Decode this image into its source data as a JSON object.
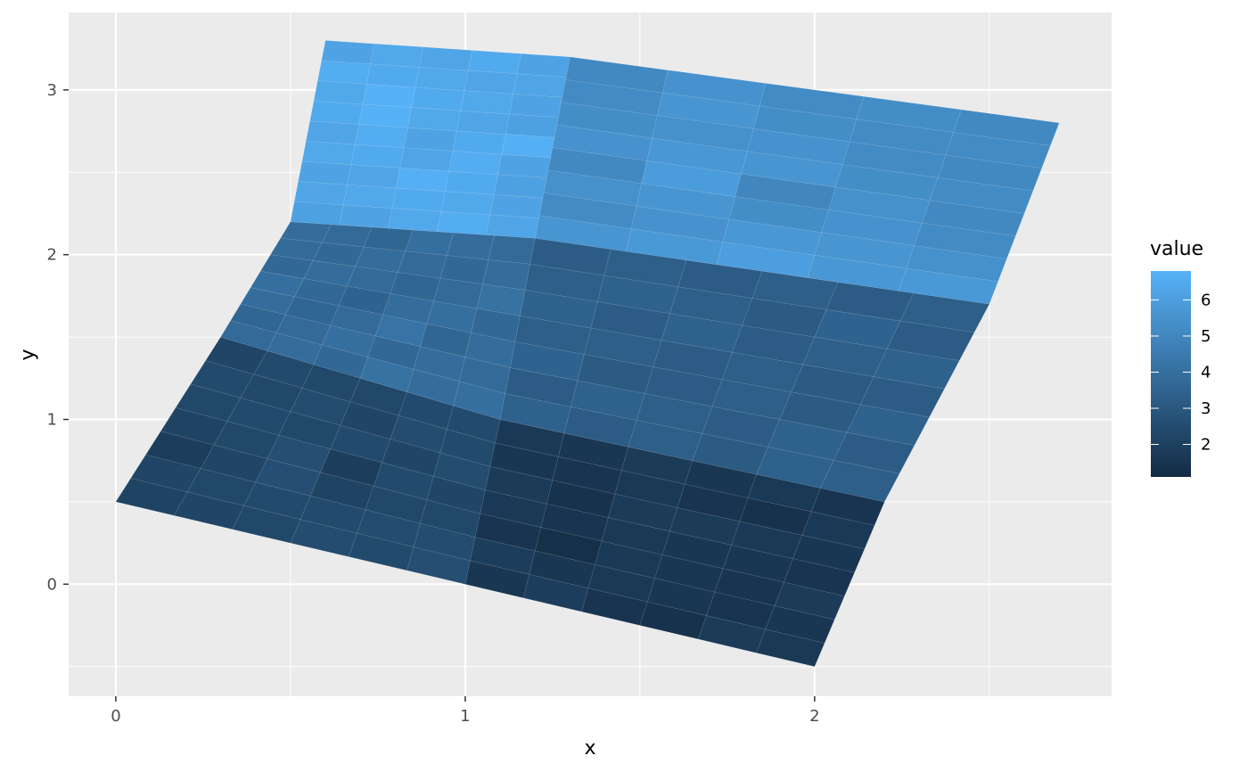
{
  "chart_data": {
    "type": "heatmap",
    "xlabel": "x",
    "ylabel": "y",
    "xlim": [
      -0.135,
      2.85
    ],
    "ylim": [
      -0.68,
      3.47
    ],
    "x_ticks": [
      0,
      1,
      2
    ],
    "y_ticks": [
      0,
      1,
      2,
      3
    ],
    "x_minor": [
      0.5,
      1.5,
      2.5
    ],
    "y_minor": [
      -0.5,
      0.5,
      1.5,
      2.5
    ],
    "grid": true,
    "legend": {
      "title": "value",
      "placement": "right",
      "range": [
        1.1,
        6.8
      ],
      "breaks": [
        2,
        3,
        4,
        5,
        6
      ],
      "low_color": "#132b43",
      "high_color": "#56b1f7"
    },
    "blocks": [
      {
        "corners": [
          [
            0,
            0.5
          ],
          [
            1,
            0
          ],
          [
            1.1,
            1
          ],
          [
            0.3,
            1.5
          ]
        ],
        "values": [
          [
            2.1,
            2.2,
            2.3,
            2.5,
            2.4,
            2.6
          ],
          [
            2.2,
            2.3,
            2.4,
            2.4,
            2.5,
            2.5
          ],
          [
            1.9,
            2.2,
            2.6,
            2.1,
            2.3,
            2.3
          ],
          [
            2.1,
            2.3,
            2.6,
            1.9,
            2.4,
            2.2
          ],
          [
            2.3,
            2.4,
            2.3,
            2.4,
            2.2,
            2.5
          ],
          [
            2.4,
            2.3,
            2.5,
            2.2,
            2.5,
            2.4
          ],
          [
            2.2,
            2.4,
            2.3,
            2.3,
            2.4,
            2.4
          ]
        ]
      },
      {
        "corners": [
          [
            1,
            0
          ],
          [
            2,
            -0.5
          ],
          [
            2.2,
            0.5
          ],
          [
            1.1,
            1
          ]
        ],
        "values": [
          [
            1.6,
            1.9,
            1.5,
            1.4,
            1.8,
            1.7
          ],
          [
            1.9,
            1.6,
            1.7,
            1.6,
            1.5,
            1.6
          ],
          [
            1.5,
            1.3,
            1.7,
            1.6,
            1.5,
            1.8
          ],
          [
            1.7,
            1.5,
            1.7,
            1.6,
            1.6,
            1.5
          ],
          [
            1.8,
            1.4,
            1.8,
            1.8,
            1.7,
            1.6
          ],
          [
            1.6,
            1.5,
            1.7,
            1.5,
            1.4,
            1.7
          ],
          [
            1.7,
            1.6,
            1.8,
            1.6,
            1.7,
            1.5
          ]
        ]
      },
      {
        "corners": [
          [
            0.3,
            1.5
          ],
          [
            1.1,
            1
          ],
          [
            1.2,
            2.1
          ],
          [
            0.5,
            2.2
          ]
        ],
        "values": [
          [
            3.8,
            3.9,
            3.7,
            4.1,
            3.9,
            4.0
          ],
          [
            3.6,
            3.8,
            4.0,
            3.7,
            3.9,
            3.8
          ],
          [
            3.9,
            3.6,
            3.8,
            4.2,
            3.6,
            3.9
          ],
          [
            4.0,
            3.7,
            3.5,
            3.9,
            4.0,
            3.7
          ],
          [
            3.7,
            3.9,
            3.8,
            3.6,
            3.8,
            4.1
          ],
          [
            3.8,
            3.7,
            3.9,
            3.8,
            3.7,
            3.9
          ],
          [
            3.9,
            3.8,
            3.6,
            4.0,
            3.9,
            3.8
          ]
        ]
      },
      {
        "corners": [
          [
            1.1,
            1
          ],
          [
            2.2,
            0.5
          ],
          [
            2.5,
            1.7
          ],
          [
            1.2,
            2.1
          ]
        ],
        "values": [
          [
            3.4,
            3.2,
            3.3,
            3.1,
            3.4,
            3.3
          ],
          [
            3.2,
            3.4,
            3.3,
            3.2,
            3.4,
            3.2
          ],
          [
            3.5,
            3.1,
            3.2,
            3.3,
            3.1,
            3.4
          ],
          [
            3.3,
            3.3,
            3.2,
            3.3,
            3.1,
            3.2
          ],
          [
            3.4,
            3.2,
            3.4,
            3.2,
            3.3,
            3.4
          ],
          [
            3.3,
            3.4,
            3.3,
            3.1,
            3.5,
            3.2
          ],
          [
            3.2,
            3.3,
            3.2,
            3.3,
            3.2,
            3.3
          ]
        ]
      },
      {
        "corners": [
          [
            0.5,
            2.2
          ],
          [
            1.2,
            2.1
          ],
          [
            1.3,
            3.2
          ],
          [
            0.6,
            3.3
          ]
        ],
        "values": [
          [
            6.1,
            6.2,
            6.4,
            6.6,
            6.3
          ],
          [
            6.3,
            6.4,
            6.5,
            6.4,
            6.2
          ],
          [
            6.2,
            6.3,
            6.7,
            6.5,
            6.1
          ],
          [
            6.4,
            6.5,
            6.3,
            6.6,
            6.2
          ],
          [
            6.3,
            6.6,
            6.2,
            6.5,
            6.7
          ],
          [
            6.5,
            6.8,
            6.4,
            6.3,
            6.1
          ],
          [
            6.4,
            6.8,
            6.5,
            6.4,
            6.2
          ],
          [
            6.6,
            6.5,
            6.4,
            6.3,
            6.3
          ],
          [
            6.2,
            6.4,
            6.3,
            6.5,
            6.2
          ]
        ]
      },
      {
        "corners": [
          [
            1.2,
            2.1
          ],
          [
            2.5,
            1.7
          ],
          [
            2.7,
            2.8
          ],
          [
            1.3,
            3.2
          ]
        ],
        "values": [
          [
            5.6,
            5.8,
            6.0,
            5.7,
            5.8
          ],
          [
            5.2,
            5.5,
            5.7,
            5.6,
            5.4
          ],
          [
            5.4,
            5.6,
            5.3,
            5.5,
            5.2
          ],
          [
            5.1,
            5.9,
            5.0,
            5.4,
            5.1
          ],
          [
            5.5,
            5.7,
            5.6,
            5.3,
            5.2
          ],
          [
            5.3,
            5.4,
            5.5,
            5.2,
            5.1
          ],
          [
            5.2,
            5.6,
            5.3,
            5.2,
            5.2
          ],
          [
            5.1,
            5.5,
            5.2,
            5.3,
            5.1
          ]
        ]
      }
    ]
  }
}
